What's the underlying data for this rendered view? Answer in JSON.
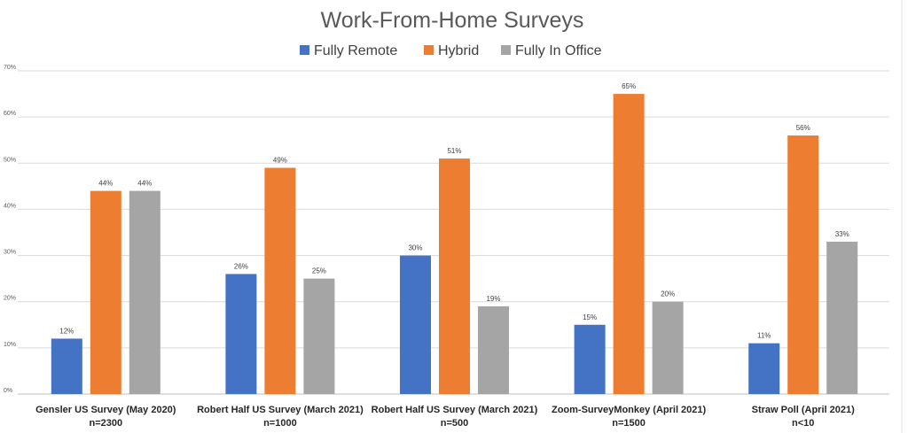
{
  "chart_data": {
    "type": "bar",
    "title": "Work-From-Home Surveys",
    "categories": [
      [
        "Gensler US Survey (May 2020)",
        "n=2300"
      ],
      [
        "Robert Half US Survey (March 2021)",
        "n=1000"
      ],
      [
        "Robert Half US Survey (March 2021)",
        "n=500"
      ],
      [
        "Zoom-SurveyMonkey (April 2021)",
        "n=1500"
      ],
      [
        "Straw Poll (April 2021)",
        "n<10"
      ]
    ],
    "series": [
      {
        "name": "Fully Remote",
        "color": "#4472c4",
        "values": [
          12,
          26,
          30,
          15,
          11
        ],
        "labels": [
          "12%",
          "26%",
          "30%",
          "15%",
          "11%"
        ]
      },
      {
        "name": "Hybrid",
        "color": "#ed7d31",
        "values": [
          44,
          49,
          51,
          65,
          56
        ],
        "labels": [
          "44%",
          "49%",
          "51%",
          "65%",
          "56%"
        ]
      },
      {
        "name": "Fully In Office",
        "color": "#a5a5a5",
        "values": [
          44,
          25,
          19,
          20,
          33
        ],
        "labels": [
          "44%",
          "25%",
          "19%",
          "20%",
          "33%"
        ]
      }
    ],
    "yticks": [
      "0%",
      "10%",
      "20%",
      "30%",
      "40%",
      "50%",
      "60%",
      "70%"
    ],
    "ylim": [
      0,
      70
    ],
    "grid": true,
    "legend": "top-center"
  }
}
